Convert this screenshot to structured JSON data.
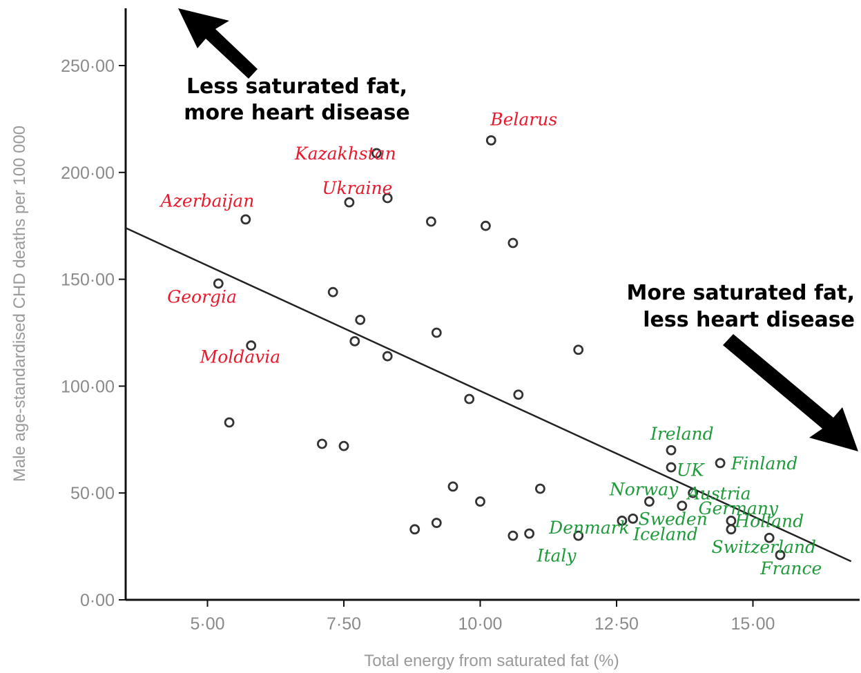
{
  "chart_data": {
    "type": "scatter",
    "xlabel": "Total energy from saturated fat (%)",
    "ylabel": "Male age-standardised CHD deaths per 100 000",
    "xlim": [
      3.5,
      16.8
    ],
    "ylim": [
      0,
      275
    ],
    "xticks": [
      5,
      7.5,
      10,
      12.5,
      15
    ],
    "xtick_labels": [
      "5·00",
      "7·50",
      "10·00",
      "12·50",
      "15·00"
    ],
    "yticks": [
      0,
      50,
      100,
      150,
      200,
      250
    ],
    "ytick_labels": [
      "0·00",
      "50·00",
      "100·00",
      "150·00",
      "200·00",
      "250·00"
    ],
    "grid": false,
    "points": [
      {
        "x": 10.2,
        "y": 215
      },
      {
        "x": 8.1,
        "y": 209
      },
      {
        "x": 7.6,
        "y": 186
      },
      {
        "x": 8.3,
        "y": 188
      },
      {
        "x": 5.7,
        "y": 178
      },
      {
        "x": 9.1,
        "y": 177
      },
      {
        "x": 10.1,
        "y": 175
      },
      {
        "x": 10.6,
        "y": 167
      },
      {
        "x": 5.2,
        "y": 148
      },
      {
        "x": 7.3,
        "y": 144
      },
      {
        "x": 7.8,
        "y": 131
      },
      {
        "x": 9.2,
        "y": 125
      },
      {
        "x": 7.7,
        "y": 121
      },
      {
        "x": 5.8,
        "y": 119
      },
      {
        "x": 11.8,
        "y": 117
      },
      {
        "x": 8.3,
        "y": 114
      },
      {
        "x": 10.7,
        "y": 96
      },
      {
        "x": 9.8,
        "y": 94
      },
      {
        "x": 5.4,
        "y": 83
      },
      {
        "x": 7.1,
        "y": 73
      },
      {
        "x": 7.5,
        "y": 72
      },
      {
        "x": 13.5,
        "y": 70
      },
      {
        "x": 14.4,
        "y": 64
      },
      {
        "x": 13.5,
        "y": 62
      },
      {
        "x": 9.5,
        "y": 53
      },
      {
        "x": 11.1,
        "y": 52
      },
      {
        "x": 13.9,
        "y": 50
      },
      {
        "x": 13.1,
        "y": 46
      },
      {
        "x": 10.0,
        "y": 46
      },
      {
        "x": 13.7,
        "y": 44
      },
      {
        "x": 12.8,
        "y": 38
      },
      {
        "x": 12.6,
        "y": 37
      },
      {
        "x": 14.6,
        "y": 37
      },
      {
        "x": 9.2,
        "y": 36
      },
      {
        "x": 8.8,
        "y": 33
      },
      {
        "x": 14.6,
        "y": 33
      },
      {
        "x": 10.9,
        "y": 31
      },
      {
        "x": 10.6,
        "y": 30
      },
      {
        "x": 11.8,
        "y": 30
      },
      {
        "x": 15.3,
        "y": 29
      },
      {
        "x": 15.5,
        "y": 21
      }
    ],
    "trendline": {
      "x": [
        3.5,
        16.8
      ],
      "y": [
        174,
        18
      ]
    },
    "annotations": {
      "top_left": {
        "lines": [
          "Less saturated fat,",
          "more heart disease"
        ]
      },
      "right": {
        "lines": [
          "More saturated fat,",
          "less heart disease"
        ]
      }
    },
    "country_labels": [
      {
        "text": "Belarus",
        "group": "high",
        "x": 10.8,
        "y": 222,
        "anchor": "middle"
      },
      {
        "text": "Kazakhstan",
        "group": "high",
        "x": 6.6,
        "y": 206,
        "anchor": "start"
      },
      {
        "text": "Ukraine",
        "group": "high",
        "x": 7.1,
        "y": 190,
        "anchor": "start"
      },
      {
        "text": "Azerbaijan",
        "group": "high",
        "x": 5.0,
        "y": 184,
        "anchor": "middle"
      },
      {
        "text": "Georgia",
        "group": "high",
        "x": 4.9,
        "y": 139,
        "anchor": "middle"
      },
      {
        "text": "Moldavia",
        "group": "high",
        "x": 5.6,
        "y": 111,
        "anchor": "middle"
      },
      {
        "text": "Ireland",
        "group": "low",
        "x": 13.7,
        "y": 75,
        "anchor": "middle"
      },
      {
        "text": "UK",
        "group": "low",
        "x": 13.6,
        "y": 58,
        "anchor": "start"
      },
      {
        "text": "Finland",
        "group": "low",
        "x": 14.6,
        "y": 61,
        "anchor": "start"
      },
      {
        "text": "Norway",
        "group": "low",
        "x": 13.0,
        "y": 49,
        "anchor": "middle"
      },
      {
        "text": "Austria",
        "group": "low",
        "x": 13.8,
        "y": 47,
        "anchor": "start"
      },
      {
        "text": "Germany",
        "group": "low",
        "x": 14.0,
        "y": 40,
        "anchor": "start"
      },
      {
        "text": "Sweden",
        "group": "low",
        "x": 12.9,
        "y": 35,
        "anchor": "start"
      },
      {
        "text": "Holland",
        "group": "low",
        "x": 15.3,
        "y": 34,
        "anchor": "middle"
      },
      {
        "text": "Denmark",
        "group": "low",
        "x": 12.0,
        "y": 31,
        "anchor": "middle"
      },
      {
        "text": "Iceland",
        "group": "low",
        "x": 13.4,
        "y": 28,
        "anchor": "middle"
      },
      {
        "text": "Switzerland",
        "group": "low",
        "x": 15.2,
        "y": 22,
        "anchor": "middle"
      },
      {
        "text": "Italy",
        "group": "low",
        "x": 11.4,
        "y": 18,
        "anchor": "middle"
      },
      {
        "text": "France",
        "group": "low",
        "x": 15.7,
        "y": 12,
        "anchor": "middle"
      }
    ],
    "colors": {
      "high": "#e8192c",
      "low": "#1f9a3a",
      "axis": "#111111",
      "points": "#333333",
      "trend": "#222222"
    }
  }
}
